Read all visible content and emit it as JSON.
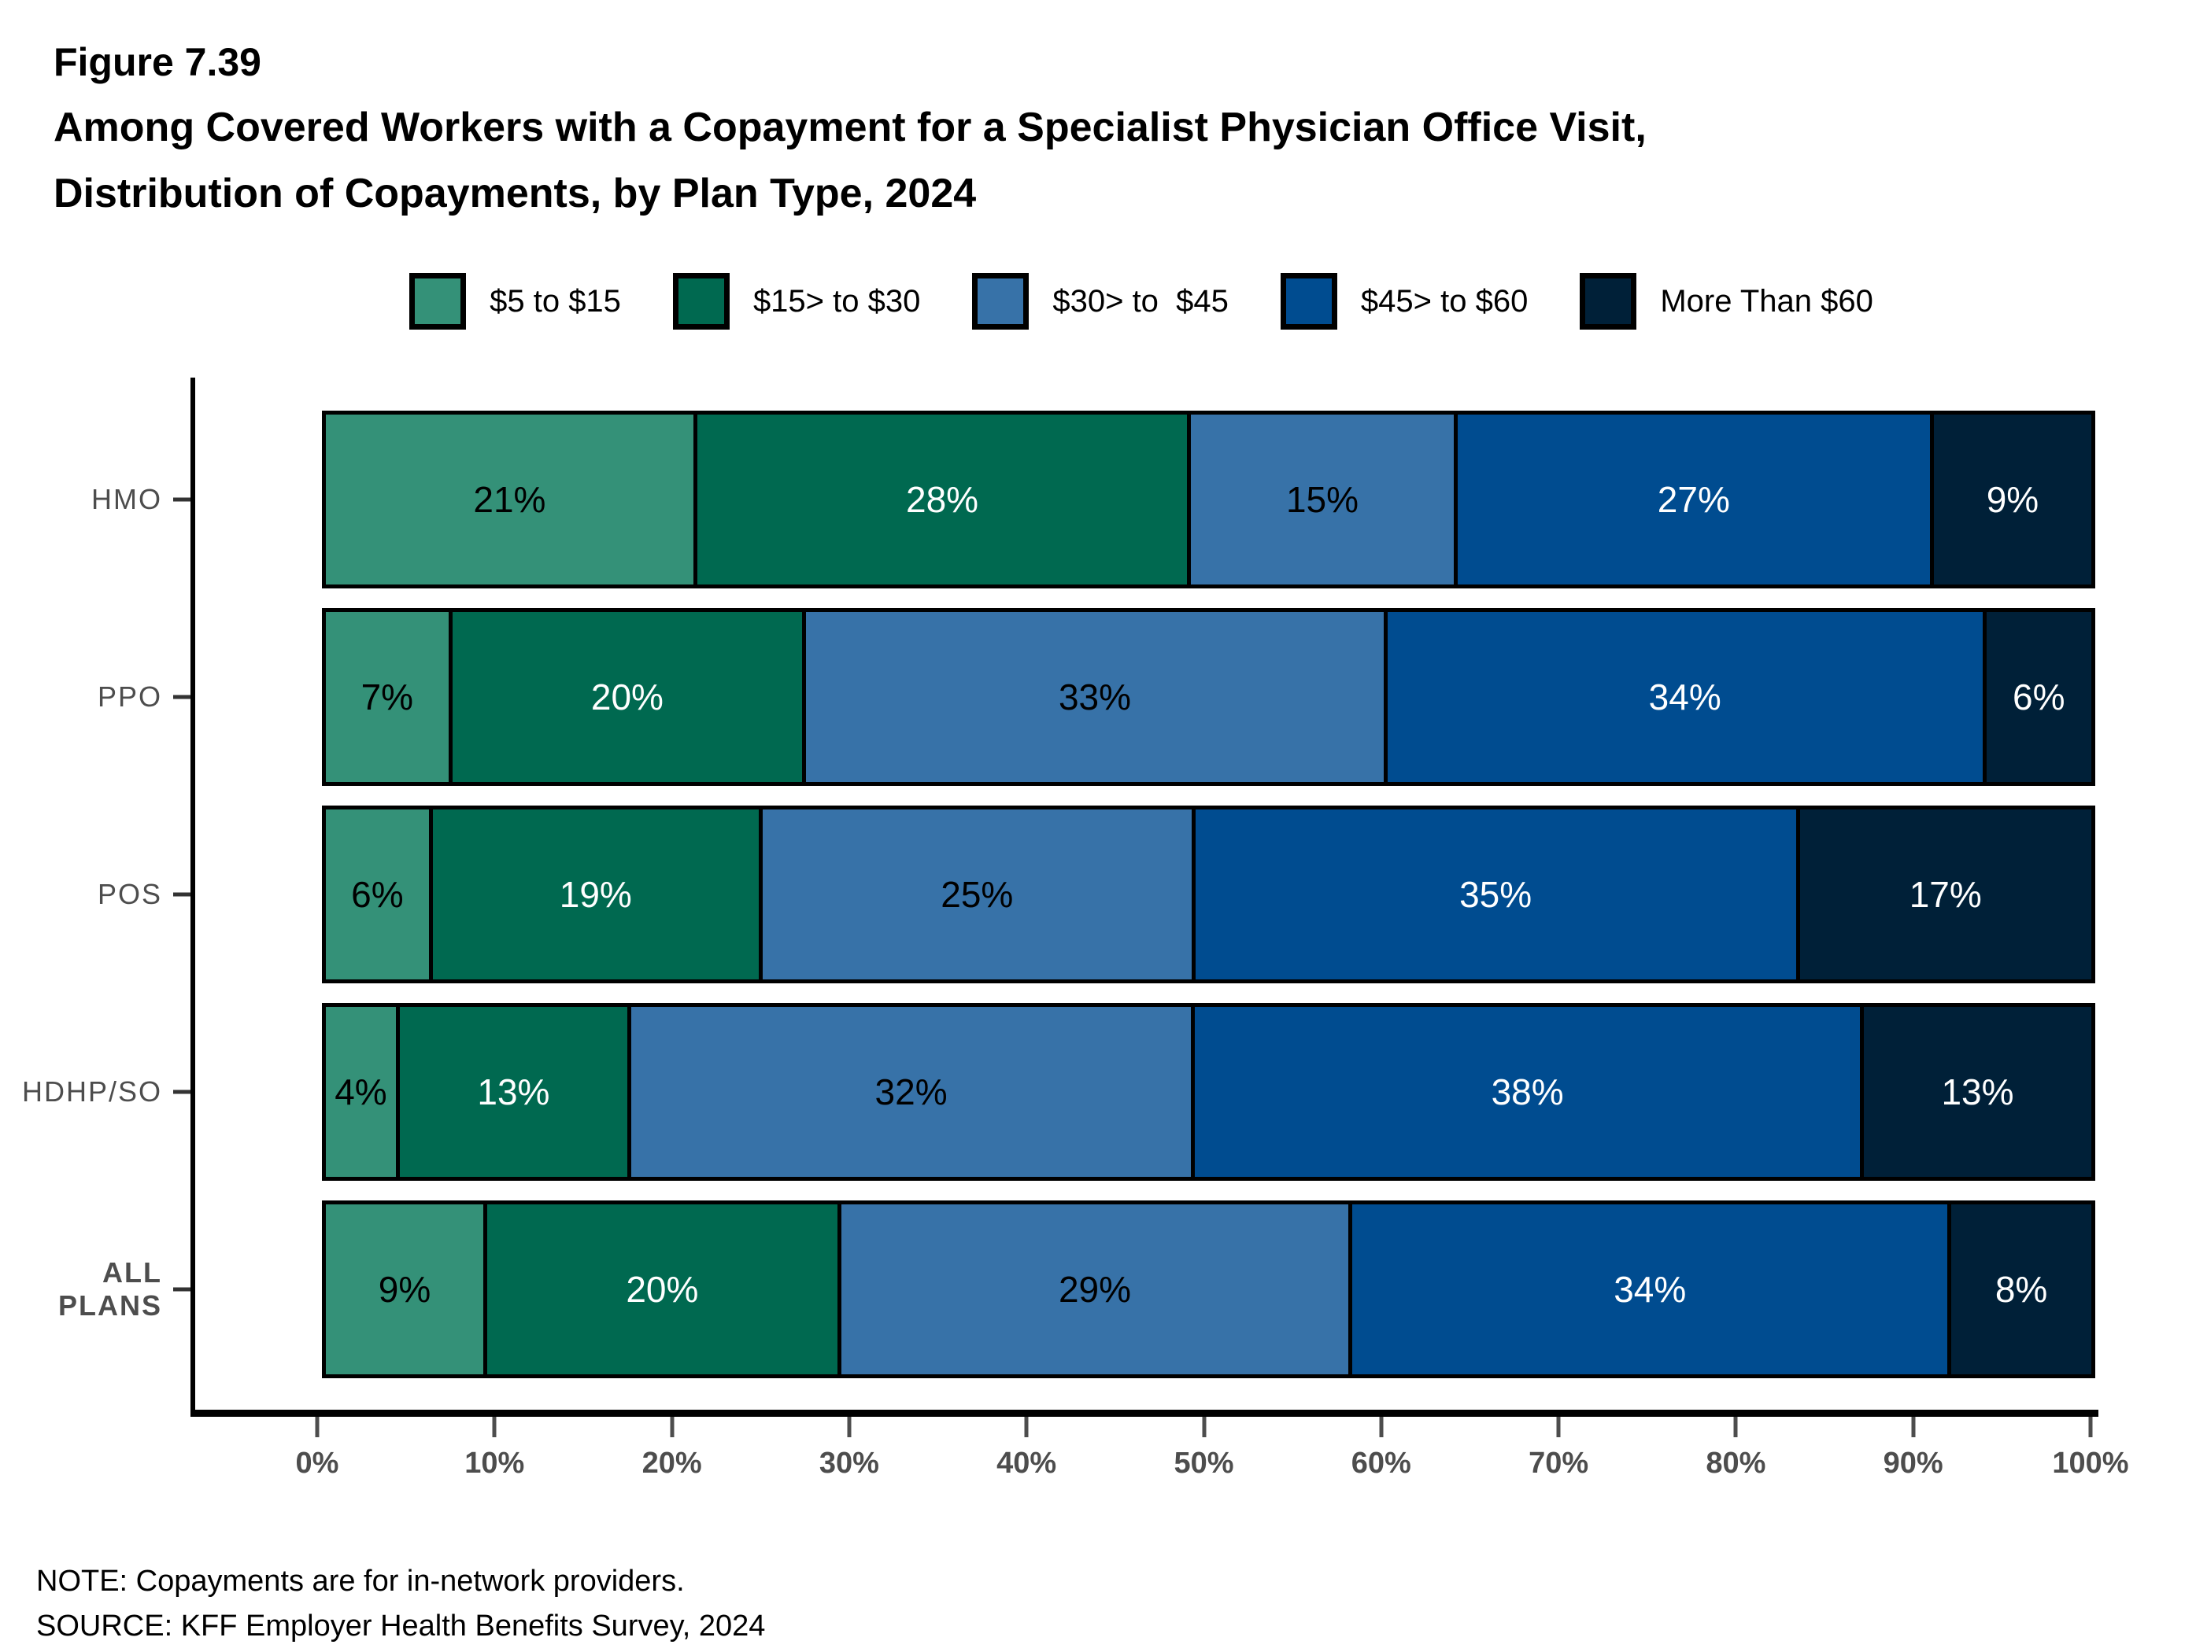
{
  "figure_label": "Figure 7.39",
  "title_line1": "Among Covered Workers with a Copayment for a Specialist Physician Office Visit,",
  "title_line2": "Distribution of Copayments, by Plan Type, 2024",
  "note": "NOTE: Copayments are for in-network providers.",
  "source": "SOURCE: KFF Employer Health Benefits Survey, 2024",
  "chart_data": {
    "type": "bar",
    "orientation": "horizontal",
    "stacked": true,
    "grid": false,
    "legend_position": "top",
    "xlabel": "",
    "ylabel": "",
    "xlim": [
      0,
      100
    ],
    "x_ticks": [
      "0%",
      "10%",
      "20%",
      "30%",
      "40%",
      "50%",
      "60%",
      "70%",
      "80%",
      "90%",
      "100%"
    ],
    "categories": [
      "HMO",
      "PPO",
      "POS",
      "HDHP/SO",
      "ALL PLANS"
    ],
    "bold_categories": [
      "ALL PLANS"
    ],
    "value_suffix": "%",
    "series": [
      {
        "name": "$5 to $15",
        "color": "#349178",
        "label_color": "#000000",
        "values": [
          21,
          7,
          6,
          4,
          9
        ]
      },
      {
        "name": "$15> to $30",
        "color": "#006950",
        "label_color": "#ffffff",
        "values": [
          28,
          20,
          19,
          13,
          20
        ]
      },
      {
        "name": "$30> to  $45",
        "color": "#3772a8",
        "label_color": "#000000",
        "values": [
          15,
          33,
          25,
          32,
          29
        ]
      },
      {
        "name": "$45> to $60",
        "color": "#004c90",
        "label_color": "#ffffff",
        "values": [
          27,
          34,
          35,
          38,
          34
        ]
      },
      {
        "name": "More Than $60",
        "color": "#002038",
        "label_color": "#ffffff",
        "values": [
          9,
          6,
          17,
          13,
          8
        ]
      }
    ],
    "axis_color": "#000000",
    "tick_label_color": "#4d4d4d"
  }
}
